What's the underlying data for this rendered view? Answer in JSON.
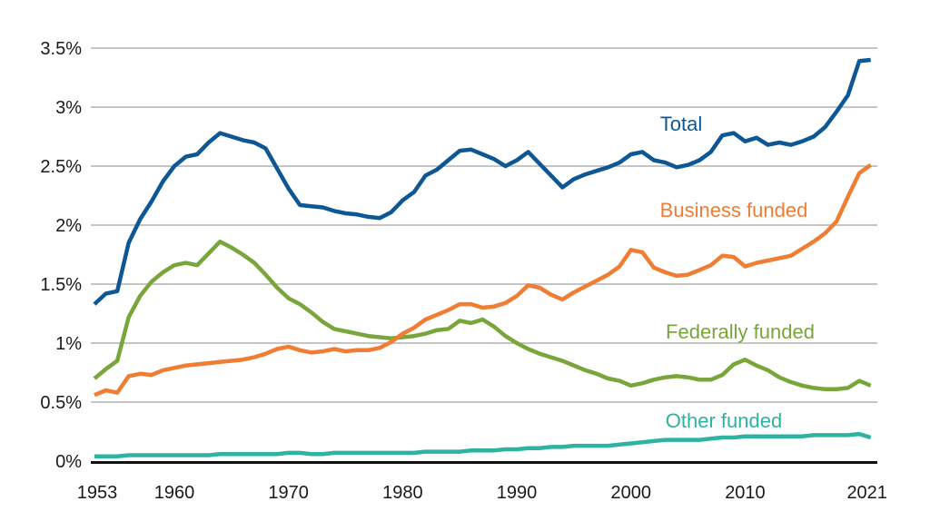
{
  "page": {
    "background": "#ffffff"
  },
  "colors": {
    "gridline": "#b2b2b2",
    "axis_line": "#111111",
    "tick_text": "#1a1a1a",
    "total": "#0d5795",
    "business": "#ef7d33",
    "federal": "#79a63a",
    "other": "#2eb3a2"
  },
  "chart_data": {
    "type": "line",
    "title": "",
    "xlabel": "",
    "ylabel": "",
    "xlim": [
      1953,
      2021
    ],
    "ylim": [
      0,
      3.5
    ],
    "grid": "horizontal gridlines every 0.5%",
    "legend_position": "inline labels beside lines",
    "x_ticks": [
      {
        "value": 1953,
        "label": "1953"
      },
      {
        "value": 1960,
        "label": "1960"
      },
      {
        "value": 1970,
        "label": "1970"
      },
      {
        "value": 1980,
        "label": "1980"
      },
      {
        "value": 1990,
        "label": "1990"
      },
      {
        "value": 2000,
        "label": "2000"
      },
      {
        "value": 2010,
        "label": "2010"
      },
      {
        "value": 2021,
        "label": "2021"
      }
    ],
    "y_ticks": [
      {
        "value": 0,
        "label": "0%"
      },
      {
        "value": 0.5,
        "label": "0.5%"
      },
      {
        "value": 1,
        "label": "1%"
      },
      {
        "value": 1.5,
        "label": "1.5%"
      },
      {
        "value": 2,
        "label": "2%"
      },
      {
        "value": 2.5,
        "label": "2.5%"
      },
      {
        "value": 3,
        "label": "3%"
      },
      {
        "value": 3.5,
        "label": "3.5%"
      }
    ],
    "years": [
      1953,
      1954,
      1955,
      1956,
      1957,
      1958,
      1959,
      1960,
      1961,
      1962,
      1963,
      1964,
      1965,
      1966,
      1967,
      1968,
      1969,
      1970,
      1971,
      1972,
      1973,
      1974,
      1975,
      1976,
      1977,
      1978,
      1979,
      1980,
      1981,
      1982,
      1983,
      1984,
      1985,
      1986,
      1987,
      1988,
      1989,
      1990,
      1991,
      1992,
      1993,
      1994,
      1995,
      1996,
      1997,
      1998,
      1999,
      2000,
      2001,
      2002,
      2003,
      2004,
      2005,
      2006,
      2007,
      2008,
      2009,
      2010,
      2011,
      2012,
      2013,
      2014,
      2015,
      2016,
      2017,
      2018,
      2019,
      2020,
      2021
    ],
    "series": [
      {
        "id": "total",
        "name": "Total",
        "color": "#0d5795",
        "values": [
          1.33,
          1.42,
          1.44,
          1.85,
          2.05,
          2.2,
          2.37,
          2.5,
          2.58,
          2.6,
          2.7,
          2.78,
          2.75,
          2.72,
          2.7,
          2.65,
          2.48,
          2.31,
          2.17,
          2.16,
          2.15,
          2.12,
          2.1,
          2.09,
          2.07,
          2.06,
          2.11,
          2.21,
          2.28,
          2.42,
          2.47,
          2.55,
          2.63,
          2.64,
          2.6,
          2.56,
          2.5,
          2.55,
          2.62,
          2.52,
          2.42,
          2.32,
          2.39,
          2.43,
          2.46,
          2.49,
          2.53,
          2.6,
          2.62,
          2.55,
          2.53,
          2.49,
          2.51,
          2.55,
          2.62,
          2.76,
          2.78,
          2.71,
          2.74,
          2.68,
          2.7,
          2.68,
          2.71,
          2.75,
          2.83,
          2.96,
          3.1,
          3.39,
          3.4
        ]
      },
      {
        "id": "business",
        "name": "Business funded",
        "color": "#ef7d33",
        "values": [
          0.56,
          0.6,
          0.58,
          0.72,
          0.74,
          0.73,
          0.77,
          0.79,
          0.81,
          0.82,
          0.83,
          0.84,
          0.85,
          0.86,
          0.88,
          0.91,
          0.95,
          0.97,
          0.94,
          0.92,
          0.93,
          0.95,
          0.93,
          0.94,
          0.94,
          0.96,
          1.01,
          1.08,
          1.13,
          1.2,
          1.24,
          1.28,
          1.33,
          1.33,
          1.3,
          1.31,
          1.34,
          1.4,
          1.49,
          1.47,
          1.41,
          1.37,
          1.43,
          1.48,
          1.53,
          1.58,
          1.65,
          1.79,
          1.77,
          1.64,
          1.6,
          1.57,
          1.58,
          1.62,
          1.66,
          1.74,
          1.73,
          1.65,
          1.68,
          1.7,
          1.72,
          1.74,
          1.8,
          1.86,
          1.93,
          2.03,
          2.24,
          2.44,
          2.51
        ]
      },
      {
        "id": "federal",
        "name": "Federally funded",
        "color": "#79a63a",
        "values": [
          0.7,
          0.78,
          0.85,
          1.22,
          1.4,
          1.52,
          1.6,
          1.66,
          1.68,
          1.66,
          1.76,
          1.86,
          1.81,
          1.75,
          1.68,
          1.58,
          1.47,
          1.38,
          1.33,
          1.26,
          1.18,
          1.12,
          1.1,
          1.08,
          1.06,
          1.05,
          1.04,
          1.05,
          1.06,
          1.08,
          1.11,
          1.12,
          1.19,
          1.17,
          1.2,
          1.14,
          1.06,
          1.0,
          0.95,
          0.91,
          0.88,
          0.85,
          0.81,
          0.77,
          0.74,
          0.7,
          0.68,
          0.64,
          0.66,
          0.69,
          0.71,
          0.72,
          0.71,
          0.69,
          0.69,
          0.73,
          0.82,
          0.86,
          0.81,
          0.77,
          0.71,
          0.67,
          0.64,
          0.62,
          0.61,
          0.61,
          0.62,
          0.68,
          0.64
        ]
      },
      {
        "id": "other",
        "name": "Other funded",
        "color": "#2eb3a2",
        "values": [
          0.04,
          0.04,
          0.04,
          0.05,
          0.05,
          0.05,
          0.05,
          0.05,
          0.05,
          0.05,
          0.05,
          0.06,
          0.06,
          0.06,
          0.06,
          0.06,
          0.06,
          0.07,
          0.07,
          0.06,
          0.06,
          0.07,
          0.07,
          0.07,
          0.07,
          0.07,
          0.07,
          0.07,
          0.07,
          0.08,
          0.08,
          0.08,
          0.08,
          0.09,
          0.09,
          0.09,
          0.1,
          0.1,
          0.11,
          0.11,
          0.12,
          0.12,
          0.13,
          0.13,
          0.13,
          0.13,
          0.14,
          0.15,
          0.16,
          0.17,
          0.18,
          0.18,
          0.18,
          0.18,
          0.19,
          0.2,
          0.2,
          0.21,
          0.21,
          0.21,
          0.21,
          0.21,
          0.21,
          0.22,
          0.22,
          0.22,
          0.22,
          0.23,
          0.2
        ]
      }
    ]
  }
}
